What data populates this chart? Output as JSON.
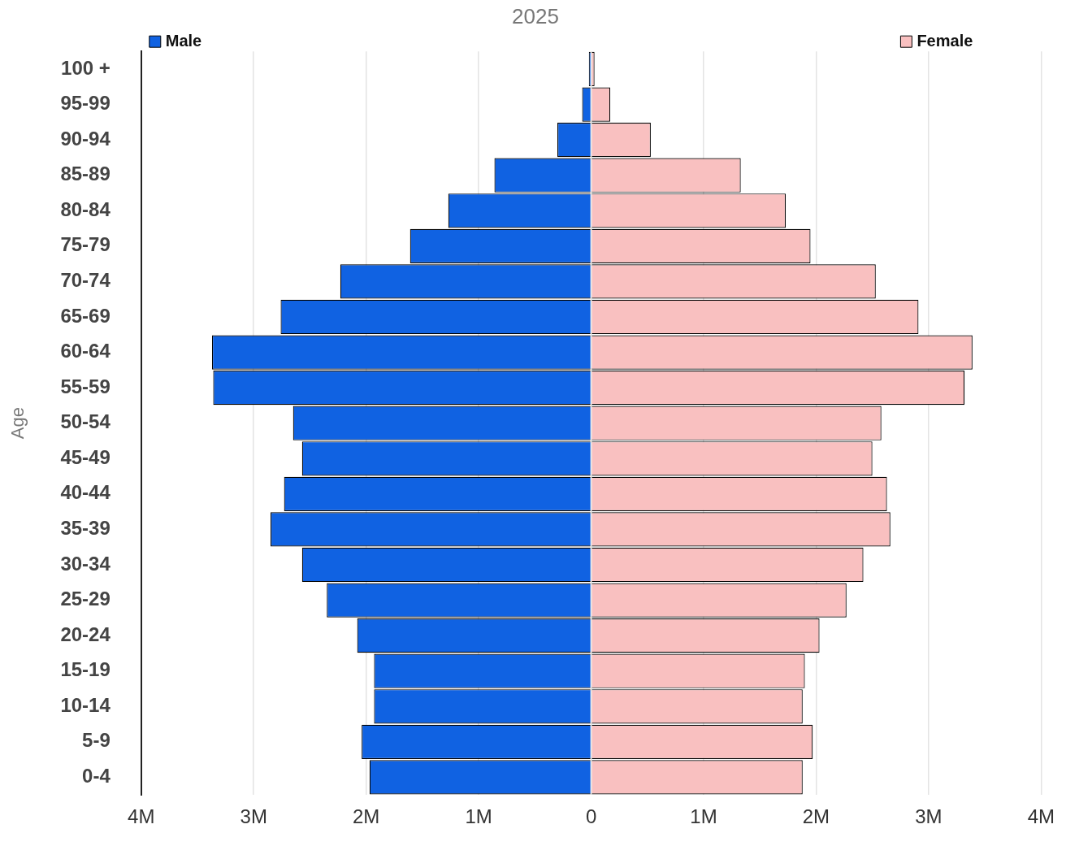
{
  "chart_data": {
    "type": "bar",
    "orientation": "horizontal",
    "stacked": true,
    "title": "2025",
    "ylabel": "Age",
    "categories": [
      "100 +",
      "95-99",
      "90-94",
      "85-89",
      "80-84",
      "75-79",
      "70-74",
      "65-69",
      "60-64",
      "55-59",
      "50-54",
      "45-49",
      "40-44",
      "35-39",
      "30-34",
      "25-29",
      "20-24",
      "15-19",
      "10-14",
      "5-9",
      "0-4"
    ],
    "series": [
      {
        "name": "Male",
        "color": "#1062e2",
        "values": [
          -20000,
          -80000,
          -300000,
          -860000,
          -1270000,
          -1610000,
          -2230000,
          -2760000,
          -3370000,
          -3360000,
          -2650000,
          -2570000,
          -2730000,
          -2850000,
          -2570000,
          -2350000,
          -2080000,
          -1930000,
          -1930000,
          -2040000,
          -1970000
        ]
      },
      {
        "name": "Female",
        "color": "#f9c0c0",
        "values": [
          30000,
          170000,
          530000,
          1330000,
          1730000,
          1950000,
          2530000,
          2910000,
          3390000,
          3320000,
          2580000,
          2500000,
          2630000,
          2660000,
          2420000,
          2270000,
          2030000,
          1900000,
          1880000,
          1970000,
          1880000
        ]
      }
    ],
    "xlim": [
      -4000000,
      4000000
    ],
    "xticks": [
      {
        "value": -4000000,
        "label": "4M"
      },
      {
        "value": -3000000,
        "label": "3M"
      },
      {
        "value": -2000000,
        "label": "2M"
      },
      {
        "value": -1000000,
        "label": "1M"
      },
      0,
      {
        "value": 1000000,
        "label": "1M"
      },
      {
        "value": 2000000,
        "label": "2M"
      },
      {
        "value": 3000000,
        "label": "3M"
      },
      {
        "value": 4000000,
        "label": "4M"
      }
    ],
    "grid": "x",
    "legend": "top"
  }
}
